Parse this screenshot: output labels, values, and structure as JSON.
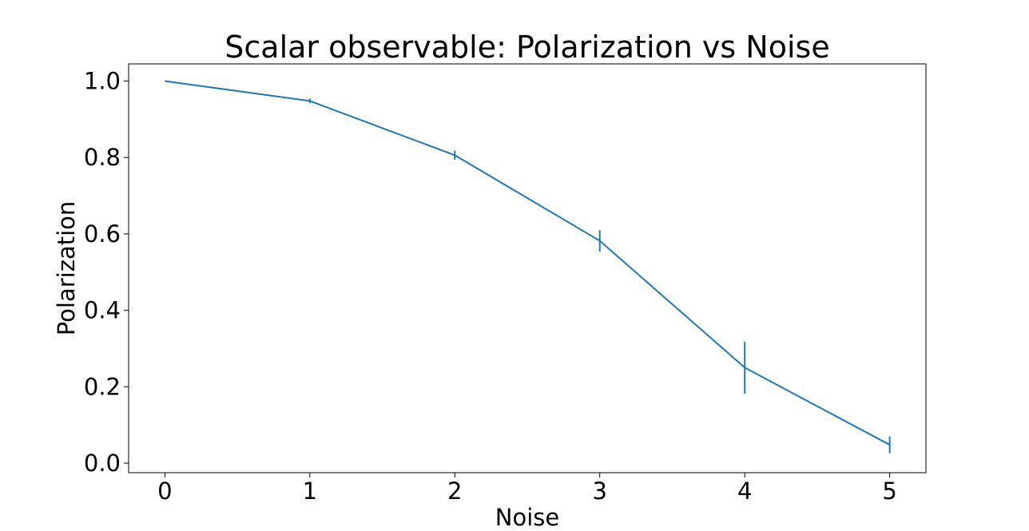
{
  "chart_data": {
    "type": "line",
    "title": "Scalar observable: Polarization vs Noise",
    "xlabel": "Noise",
    "ylabel": "Polarization",
    "xlim": [
      -0.25,
      5.25
    ],
    "ylim": [
      -0.025,
      1.045
    ],
    "xticks": [
      0,
      1,
      2,
      3,
      4,
      5
    ],
    "yticks": [
      0.0,
      0.2,
      0.4,
      0.6,
      0.8,
      1.0
    ],
    "xtick_labels": [
      "0",
      "1",
      "2",
      "3",
      "4",
      "5"
    ],
    "ytick_labels": [
      "0.0",
      "0.2",
      "0.4",
      "0.6",
      "0.8",
      "1.0"
    ],
    "grid": false,
    "legend": "none",
    "series": [
      {
        "color": "#1f77b4",
        "x": [
          0,
          1,
          2,
          3,
          4,
          5
        ],
        "y": [
          1.0,
          0.948,
          0.806,
          0.582,
          0.25,
          0.048
        ],
        "yerr": [
          0.0,
          0.006,
          0.012,
          0.028,
          0.068,
          0.022
        ]
      }
    ]
  }
}
